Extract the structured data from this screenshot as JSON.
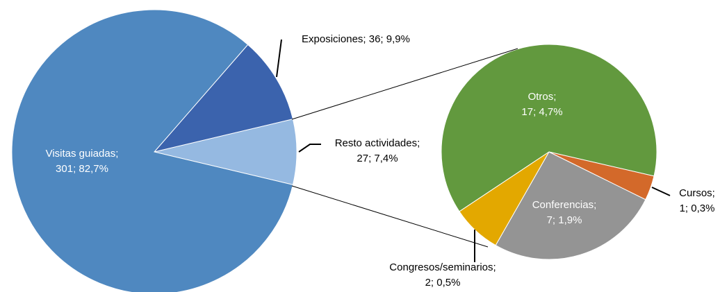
{
  "chart_data": [
    {
      "type": "pie",
      "categories": [
        "Visitas guiadas",
        "Exposiciones",
        "Resto actividades"
      ],
      "values": [
        301,
        36,
        27
      ],
      "value_labels": [
        "Visitas guiadas; 301; 82,7%",
        "Exposiciones; 36; 9,9%",
        "Resto actividades; 27; 7,4%"
      ],
      "colors": [
        "#4f88c0",
        "#3b63ad",
        "#95b9e1"
      ]
    },
    {
      "type": "pie",
      "categories": [
        "Otros",
        "Congresos/seminarios",
        "Conferencias",
        "Cursos"
      ],
      "values": [
        17,
        2,
        7,
        1
      ],
      "value_labels": [
        "Otros; 17; 4,7%",
        "Congresos/seminarios; 2; 0,5%",
        "Conferencias; 7; 1,9%",
        "Cursos; 1; 0,3%"
      ],
      "colors": [
        "#62993e",
        "#e3a800",
        "#949494",
        "#d3692a"
      ]
    }
  ]
}
